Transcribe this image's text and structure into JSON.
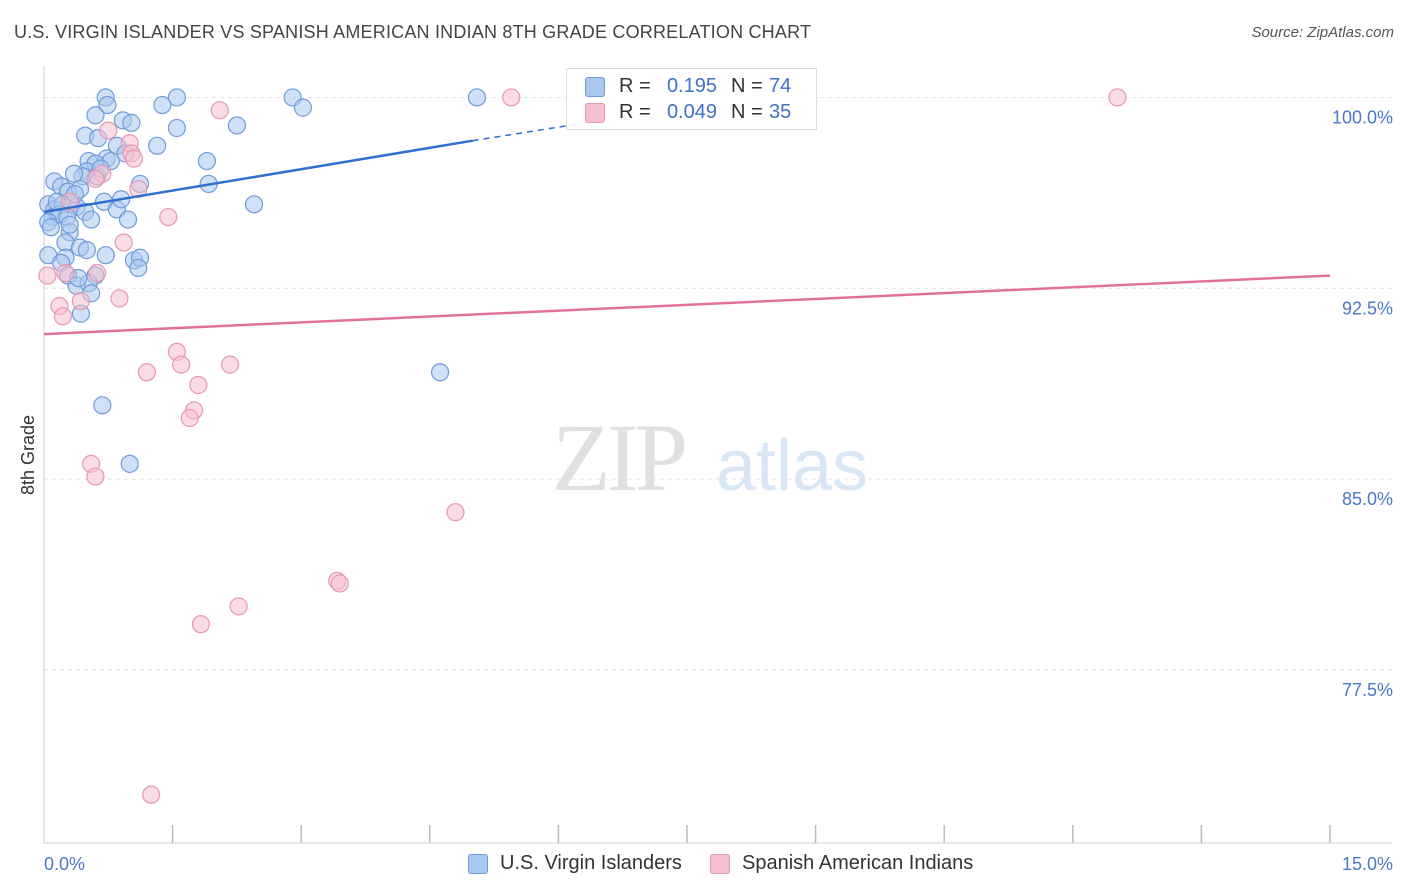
{
  "title": "U.S. VIRGIN ISLANDER VS SPANISH AMERICAN INDIAN 8TH GRADE CORRELATION CHART",
  "source": "Source: ZipAtlas.com",
  "watermark": {
    "zip": "ZIP",
    "atlas": "atlas"
  },
  "colors": {
    "blue_fill": "#a9c8f0",
    "blue_stroke": "#6f9bd8",
    "blue_line": "#2f6fcf",
    "pink_fill": "#f6bfd0",
    "pink_stroke": "#e996b2",
    "pink_line": "#e0729a",
    "tick_text": "#4a78c8",
    "grid": "#e2e2e2"
  },
  "legend_top": {
    "rows": [
      {
        "r_label": "R =",
        "r_value": "0.195",
        "n_label": "N =",
        "n_value": "74"
      },
      {
        "r_label": "R =",
        "r_value": "0.049",
        "n_label": "N =",
        "n_value": "35"
      }
    ]
  },
  "legend_bottom": [
    "U.S. Virgin Islanders",
    "Spanish American Indians"
  ],
  "chart_data": {
    "type": "scatter",
    "xlabel": "",
    "ylabel": "8th Grade",
    "xlim": [
      0,
      15
    ],
    "ylim": [
      70.7,
      101.0
    ],
    "x_tick_labels": [
      {
        "value": 0,
        "label": "0.0%"
      },
      {
        "value": 15,
        "label": "15.0%"
      }
    ],
    "y_ticks": [
      {
        "value": 100.0,
        "label": "100.0%"
      },
      {
        "value": 92.5,
        "label": "92.5%"
      },
      {
        "value": 85.0,
        "label": "85.0%"
      },
      {
        "value": 77.5,
        "label": "77.5%"
      }
    ],
    "x_minor_ticks": [
      1.5,
      3.0,
      4.5,
      6.0,
      7.5,
      9.0,
      10.5,
      12.0,
      13.5,
      15.0
    ],
    "grid": true,
    "series": [
      {
        "name": "U.S. Virgin Islanders",
        "color": "#6f9bd8",
        "trend": {
          "x": [
            0.0,
            5.0
          ],
          "y": [
            95.5,
            98.3
          ],
          "dashed_to": [
            6.5,
            99.1
          ]
        },
        "points": [
          [
            0.72,
            100.0
          ],
          [
            0.74,
            99.7
          ],
          [
            1.55,
            100.0
          ],
          [
            2.9,
            100.0
          ],
          [
            3.02,
            99.6
          ],
          [
            5.05,
            100.0
          ],
          [
            1.38,
            99.7
          ],
          [
            0.6,
            99.3
          ],
          [
            0.92,
            99.1
          ],
          [
            1.02,
            99.0
          ],
          [
            1.55,
            98.8
          ],
          [
            2.25,
            98.9
          ],
          [
            0.48,
            98.5
          ],
          [
            0.63,
            98.4
          ],
          [
            0.85,
            98.1
          ],
          [
            1.32,
            98.1
          ],
          [
            1.9,
            97.5
          ],
          [
            0.52,
            97.5
          ],
          [
            0.73,
            97.6
          ],
          [
            0.78,
            97.5
          ],
          [
            0.6,
            97.4
          ],
          [
            0.5,
            97.1
          ],
          [
            0.45,
            96.9
          ],
          [
            0.35,
            97.0
          ],
          [
            0.62,
            96.9
          ],
          [
            1.12,
            96.6
          ],
          [
            1.92,
            96.6
          ],
          [
            0.12,
            96.7
          ],
          [
            0.2,
            96.5
          ],
          [
            0.28,
            96.3
          ],
          [
            0.42,
            96.4
          ],
          [
            0.7,
            95.9
          ],
          [
            2.45,
            95.8
          ],
          [
            0.05,
            95.8
          ],
          [
            0.12,
            95.6
          ],
          [
            0.22,
            95.8
          ],
          [
            0.32,
            95.8
          ],
          [
            0.38,
            95.7
          ],
          [
            0.48,
            95.5
          ],
          [
            0.85,
            95.6
          ],
          [
            0.1,
            95.3
          ],
          [
            0.18,
            95.4
          ],
          [
            0.05,
            95.1
          ],
          [
            0.27,
            95.3
          ],
          [
            0.98,
            95.2
          ],
          [
            0.3,
            94.7
          ],
          [
            0.25,
            94.3
          ],
          [
            0.42,
            94.1
          ],
          [
            0.05,
            93.8
          ],
          [
            0.25,
            93.7
          ],
          [
            0.2,
            93.5
          ],
          [
            0.72,
            93.8
          ],
          [
            1.05,
            93.6
          ],
          [
            1.12,
            93.7
          ],
          [
            1.1,
            93.3
          ],
          [
            0.28,
            93.0
          ],
          [
            0.6,
            93.0
          ],
          [
            0.38,
            92.6
          ],
          [
            0.52,
            92.7
          ],
          [
            0.55,
            92.3
          ],
          [
            0.43,
            91.5
          ],
          [
            4.62,
            89.2
          ],
          [
            0.68,
            87.9
          ],
          [
            1.0,
            85.6
          ],
          [
            0.3,
            95.0
          ],
          [
            0.15,
            95.9
          ],
          [
            0.36,
            96.2
          ],
          [
            0.55,
            95.2
          ],
          [
            0.95,
            97.8
          ],
          [
            0.66,
            97.2
          ],
          [
            0.4,
            92.9
          ],
          [
            0.08,
            94.9
          ],
          [
            0.5,
            94.0
          ],
          [
            0.9,
            96.0
          ]
        ]
      },
      {
        "name": "Spanish American Indians",
        "color": "#e996b2",
        "trend": {
          "x": [
            0.0,
            15.0
          ],
          "y": [
            90.7,
            93.0
          ]
        },
        "points": [
          [
            5.45,
            100.0
          ],
          [
            12.52,
            100.0
          ],
          [
            2.05,
            99.5
          ],
          [
            0.75,
            98.7
          ],
          [
            1.0,
            98.2
          ],
          [
            1.02,
            97.8
          ],
          [
            0.68,
            97.0
          ],
          [
            1.1,
            96.4
          ],
          [
            0.3,
            95.9
          ],
          [
            1.45,
            95.3
          ],
          [
            0.93,
            94.3
          ],
          [
            0.25,
            93.1
          ],
          [
            0.62,
            93.1
          ],
          [
            0.88,
            92.1
          ],
          [
            0.43,
            92.0
          ],
          [
            0.18,
            91.8
          ],
          [
            0.22,
            91.4
          ],
          [
            1.55,
            90.0
          ],
          [
            1.6,
            89.5
          ],
          [
            2.17,
            89.5
          ],
          [
            1.2,
            89.2
          ],
          [
            1.8,
            88.7
          ],
          [
            1.75,
            87.7
          ],
          [
            1.7,
            87.4
          ],
          [
            0.55,
            85.6
          ],
          [
            0.6,
            85.1
          ],
          [
            4.8,
            83.7
          ],
          [
            3.42,
            81.0
          ],
          [
            3.45,
            80.9
          ],
          [
            2.27,
            80.0
          ],
          [
            1.83,
            79.3
          ],
          [
            1.25,
            72.6
          ],
          [
            0.04,
            93.0
          ],
          [
            1.05,
            97.6
          ],
          [
            0.6,
            96.8
          ]
        ]
      }
    ]
  }
}
